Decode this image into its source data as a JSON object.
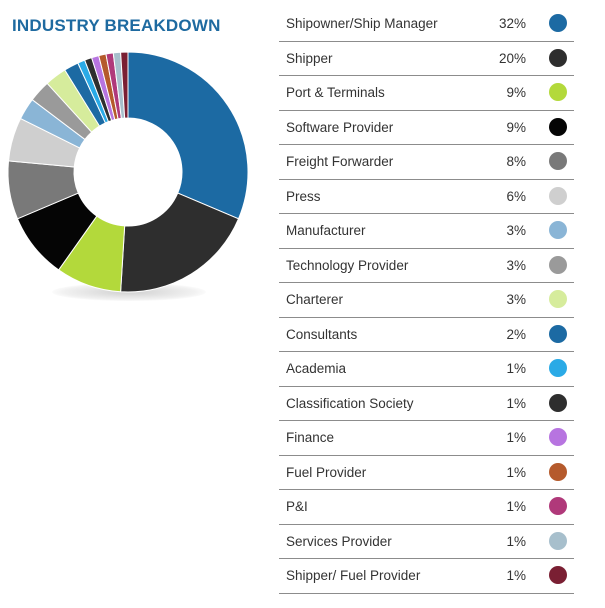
{
  "chart_data": {
    "type": "pie",
    "title": "INDUSTRY BREAKDOWN",
    "donut": true,
    "series": [
      {
        "label": "Shipowner/Ship Manager",
        "value": 32,
        "display": "32%",
        "color": "#1c6aa3"
      },
      {
        "label": "Shipper",
        "value": 20,
        "display": "20%",
        "color": "#2e2e2e"
      },
      {
        "label": "Port & Terminals",
        "value": 9,
        "display": "9%",
        "color": "#b3d93b"
      },
      {
        "label": "Software Provider",
        "value": 9,
        "display": "9%",
        "color": "#050505"
      },
      {
        "label": "Freight Forwarder",
        "value": 8,
        "display": "8%",
        "color": "#797979"
      },
      {
        "label": "Press",
        "value": 6,
        "display": "6%",
        "color": "#cfcfcf"
      },
      {
        "label": "Manufacturer",
        "value": 3,
        "display": "3%",
        "color": "#8ab5d6"
      },
      {
        "label": "Technology Provider",
        "value": 3,
        "display": "3%",
        "color": "#9a9a9a"
      },
      {
        "label": "Charterer",
        "value": 3,
        "display": "3%",
        "color": "#d6ec9c"
      },
      {
        "label": "Consultants",
        "value": 2,
        "display": "2%",
        "color": "#1c6aa3"
      },
      {
        "label": "Academia",
        "value": 1,
        "display": "1%",
        "color": "#2aaae6"
      },
      {
        "label": "Classification Society",
        "value": 1,
        "display": "1%",
        "color": "#2e2e2e"
      },
      {
        "label": "Finance",
        "value": 1,
        "display": "1%",
        "color": "#b774e0"
      },
      {
        "label": "Fuel Provider",
        "value": 1,
        "display": "1%",
        "color": "#b55a2c"
      },
      {
        "label": "P&I",
        "value": 1,
        "display": "1%",
        "color": "#b0397a"
      },
      {
        "label": "Services Provider",
        "value": 1,
        "display": "1%",
        "color": "#a7bfcc"
      },
      {
        "label": "Shipper/ Fuel Provider",
        "value": 1,
        "display": "1%",
        "color": "#7a1f33"
      }
    ]
  }
}
